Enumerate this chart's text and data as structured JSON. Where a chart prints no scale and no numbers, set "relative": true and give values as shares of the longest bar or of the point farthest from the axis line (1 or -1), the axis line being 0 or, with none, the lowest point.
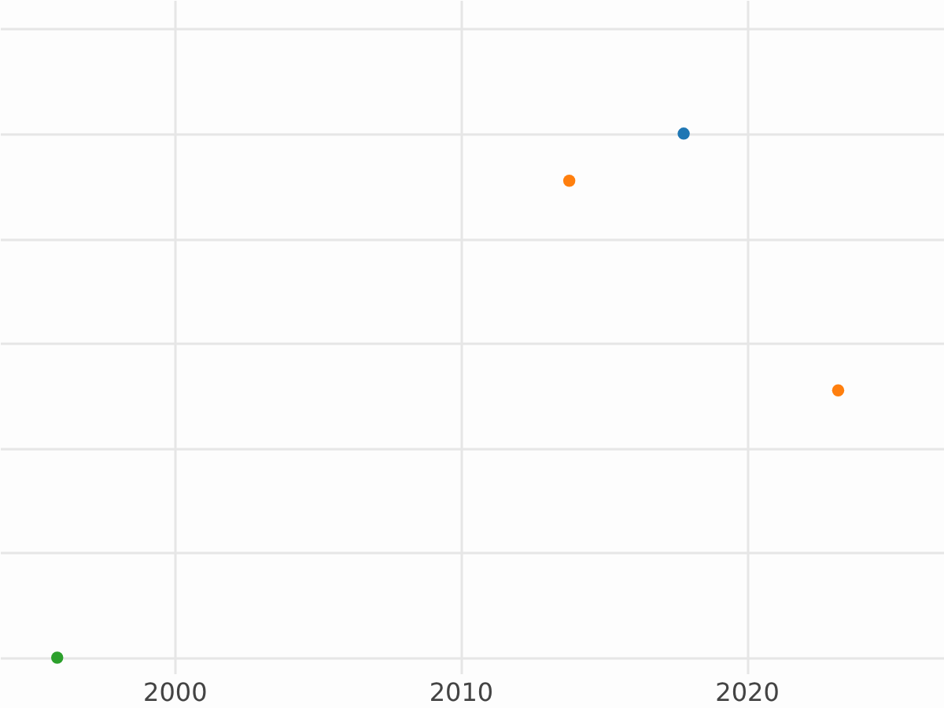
{
  "chart_data": {
    "type": "scatter",
    "relative": true,
    "xlim": [
      1993.9,
      2026.9
    ],
    "xticks": [
      2000,
      2010,
      2020
    ],
    "grid": true,
    "marker": "circle",
    "series": [
      {
        "color": "#1f77b4",
        "x": [
          2017.8
        ],
        "values": [
          1
        ]
      },
      {
        "color": "#ff7f0e",
        "x": [
          2013.8,
          2023.2
        ],
        "values": [
          0.91,
          0.51
        ]
      },
      {
        "color": "#2ca02c",
        "x": [
          1995.9
        ],
        "values": [
          0
        ]
      }
    ]
  }
}
